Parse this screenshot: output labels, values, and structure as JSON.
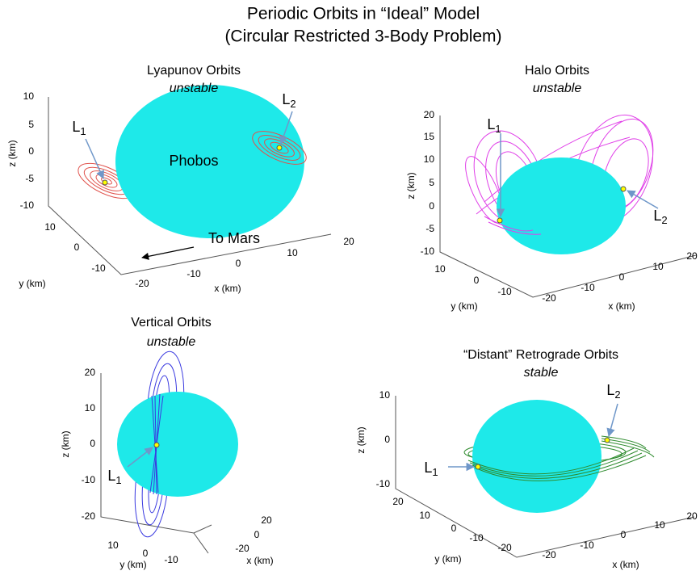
{
  "header": {
    "title": "Periodic Orbits in “Ideal” Model",
    "subtitle": "(Circular Restricted 3-Body Problem)"
  },
  "panels": [
    {
      "title": "Lyapunov Orbits",
      "stability": "unstable",
      "body_label": "Phobos",
      "annotation": "To Mars",
      "z_label": "z (km)",
      "z_ticks": [
        "10",
        "5",
        "0",
        "-5",
        "-10"
      ],
      "y_label": "y (km)",
      "y_ticks": [
        "10",
        "0",
        "-10"
      ],
      "x_label": "x (km)",
      "x_ticks": [
        "-20",
        "-10",
        "0",
        "10",
        "20"
      ],
      "points": [
        {
          "base": "L",
          "sub": "1"
        },
        {
          "base": "L",
          "sub": "2"
        }
      ]
    },
    {
      "title": "Halo Orbits",
      "stability": "unstable",
      "z_label": "z (km)",
      "z_ticks": [
        "20",
        "15",
        "10",
        "5",
        "0",
        "-5",
        "-10"
      ],
      "y_label": "y (km)",
      "y_ticks": [
        "10",
        "0",
        "-10"
      ],
      "x_label": "x (km)",
      "x_ticks": [
        "-20",
        "-10",
        "0",
        "10",
        "20"
      ],
      "points": [
        {
          "base": "L",
          "sub": "1"
        },
        {
          "base": "L",
          "sub": "2"
        }
      ]
    },
    {
      "title": "Vertical Orbits",
      "stability": "unstable",
      "z_label": "z (km)",
      "z_ticks": [
        "20",
        "10",
        "0",
        "-10",
        "-20"
      ],
      "y_label": "y (km)",
      "y_ticks": [
        "10",
        "0",
        "-10"
      ],
      "x_label": "x (km)",
      "x_ticks": [
        "20",
        "0",
        "-20"
      ],
      "points": [
        {
          "base": "L",
          "sub": "1"
        }
      ]
    },
    {
      "title": "“Distant” Retrograde Orbits",
      "stability": "stable",
      "z_label": "z (km)",
      "z_ticks": [
        "10",
        "0",
        "-10"
      ],
      "y_label": "y (km)",
      "y_ticks": [
        "20",
        "10",
        "0",
        "-10",
        "-20"
      ],
      "x_label": "x (km)",
      "x_ticks": [
        "-20",
        "-10",
        "0",
        "10",
        "20"
      ],
      "points": [
        {
          "base": "L",
          "sub": "1"
        },
        {
          "base": "L",
          "sub": "2"
        }
      ]
    }
  ]
}
